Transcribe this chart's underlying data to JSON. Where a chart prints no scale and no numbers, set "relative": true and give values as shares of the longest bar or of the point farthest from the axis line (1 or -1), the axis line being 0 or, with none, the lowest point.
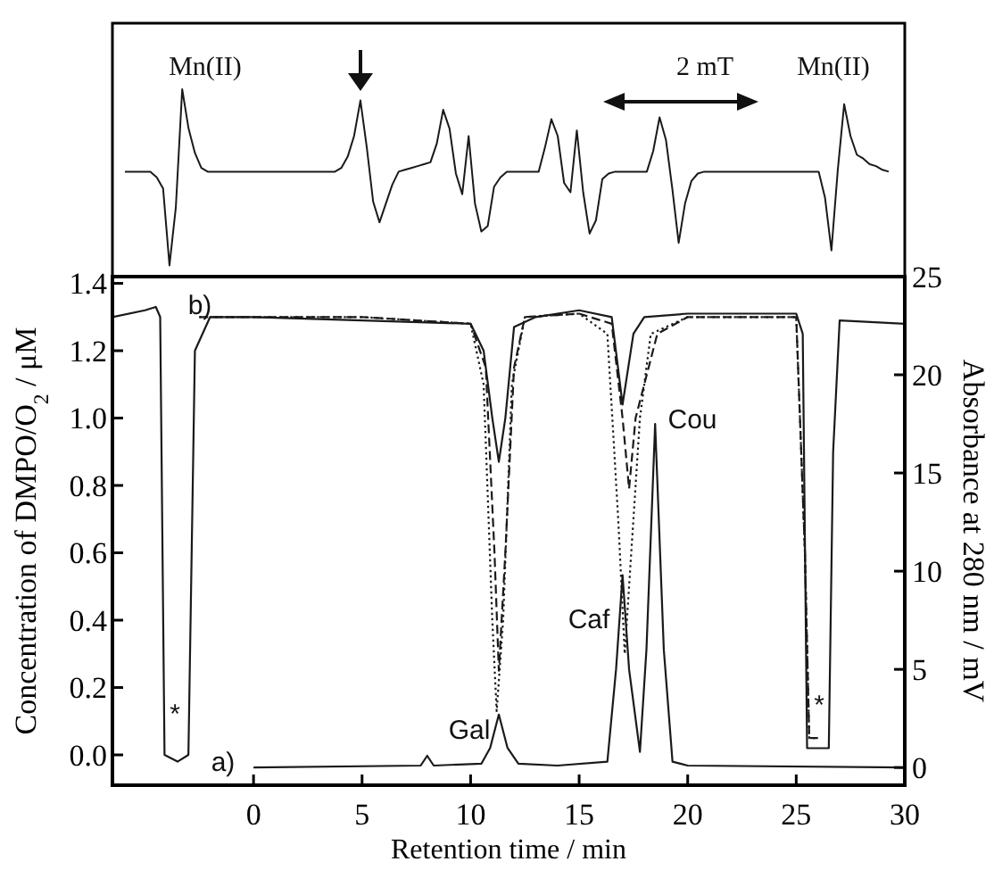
{
  "chart_data": [
    {
      "type": "line",
      "relative": true,
      "categories": [
        null,
        null,
        null,
        null,
        null,
        null,
        null,
        null,
        null,
        null,
        null,
        null,
        null,
        null,
        null,
        null,
        null,
        null,
        null,
        null,
        null,
        null,
        null,
        null,
        null,
        null,
        null,
        null,
        null,
        null,
        null,
        null,
        null,
        null,
        null,
        null,
        null,
        null,
        null,
        null,
        null,
        null,
        null,
        null,
        null,
        null,
        null,
        null,
        null,
        null,
        null,
        null,
        null,
        null,
        null,
        null,
        null,
        null,
        null,
        null,
        null,
        null,
        null,
        null,
        null,
        null,
        null,
        null,
        null,
        null,
        null,
        null,
        null,
        null,
        null,
        null,
        null,
        null,
        null,
        null,
        null,
        null,
        null,
        null,
        null,
        null,
        null,
        null,
        null,
        null,
        null,
        null,
        null,
        null,
        null,
        null,
        null,
        null,
        null,
        null,
        null,
        null,
        null,
        null,
        null,
        null,
        null,
        null,
        null,
        null,
        null,
        null,
        null,
        null,
        null,
        null,
        null,
        null,
        null,
        null,
        null
      ],
      "series": [
        {
          "color": "#1a1a1a",
          "values": [
            0.56,
            0.56,
            0.56,
            0.56,
            0.56,
            0.53,
            0.47,
            0.06,
            0.37,
            1,
            0.79,
            0.66,
            0.58,
            0.56,
            0.56,
            0.56,
            0.56,
            0.56,
            0.56,
            0.56,
            0.56,
            0.56,
            0.56,
            0.56,
            0.56,
            0.56,
            0.56,
            0.56,
            0.56,
            0.56,
            0.56,
            0.56,
            0.56,
            0.56,
            0.58,
            0.64,
            0.75,
            0.94,
            0.69,
            0.4,
            0.29,
            0.39,
            0.49,
            0.56,
            0.57,
            0.58,
            0.59,
            0.6,
            0.61,
            0.71,
            0.89,
            0.79,
            0.55,
            0.44,
            0.75,
            0.39,
            0.24,
            0.27,
            0.48,
            0.53,
            0.56,
            0.56,
            0.56,
            0.56,
            0.56,
            0.56,
            0.69,
            0.84,
            0.75,
            0.5,
            0.45,
            0.78,
            0.45,
            0.23,
            0.3,
            0.52,
            0.55,
            0.56,
            0.56,
            0.56,
            0.56,
            0.56,
            0.56,
            0.67,
            0.85,
            0.73,
            0.47,
            0.18,
            0.39,
            0.51,
            0.55,
            0.56,
            0.56,
            0.56,
            0.56,
            0.56,
            0.56,
            0.56,
            0.56,
            0.56,
            0.56,
            0.56,
            0.56,
            0.56,
            0.56,
            0.56,
            0.56,
            0.56,
            0.56,
            0.56,
            0.42,
            0.14,
            0.57,
            0.92,
            0.75,
            0.65,
            0.63,
            0.6,
            0.59,
            0.57,
            0.56
          ]
        }
      ],
      "annotations": [
        "Mn(II)",
        "2 mT",
        "Mn(II)"
      ]
    },
    {
      "type": "line",
      "xlabel": "Retention time / min",
      "ylabel": "Concentration of DMPO/O$_{2}$ / μM",
      "y2label": "Absorbance at 280 nm / mV",
      "xlim": [
        -6.5,
        30
      ],
      "xticks": [
        0,
        5,
        10,
        15,
        20,
        25,
        30
      ],
      "ylim": [
        -0.09,
        1.42
      ],
      "yticks": [
        {
          "value": 0,
          "label": "0.0"
        },
        {
          "value": 0.2,
          "label": "0.2"
        },
        {
          "value": 0.4,
          "label": "0.4"
        },
        {
          "value": 0.6,
          "label": "0.6"
        },
        {
          "value": 0.8,
          "label": "0.8"
        },
        {
          "value": 1,
          "label": "1.0"
        },
        {
          "value": 1.2,
          "label": "1.2"
        },
        {
          "value": 1.4,
          "label": "1.4"
        }
      ],
      "y2lim": [
        -0.9,
        25
      ],
      "y2ticks": [
        0,
        5,
        10,
        15,
        20,
        25
      ],
      "series": [
        {
          "color": "#1a1a1a",
          "line_style": "solid",
          "x": [
            -6.5,
            -5,
            -4.5,
            -4.3,
            -4.1,
            -3.5,
            -3,
            -2.9,
            -2.7,
            -2,
            0,
            5,
            10,
            10.6,
            11.0,
            11.3,
            11.6,
            12,
            13,
            15,
            16.5,
            17.0,
            17.5,
            18,
            20,
            25,
            25.3,
            25.5,
            26.5,
            26.7,
            27,
            30
          ],
          "values": [
            1.3,
            1.32,
            1.33,
            1.3,
            0.0,
            -0.02,
            0.0,
            0.4,
            1.2,
            1.3,
            1.3,
            1.29,
            1.28,
            1.2,
            1.0,
            0.87,
            1.0,
            1.27,
            1.3,
            1.32,
            1.3,
            1.04,
            1.25,
            1.3,
            1.31,
            1.31,
            1.25,
            0.02,
            0.02,
            0.9,
            1.29,
            1.28
          ]
        },
        {
          "color": "#1a1a1a",
          "line_style": "dashed",
          "x": [
            -2.5,
            5,
            10,
            10.7,
            11.1,
            11.3,
            11.6,
            12.0,
            12.5,
            15,
            16.5,
            17.0,
            17.3,
            17.6,
            18.2,
            18.6,
            20,
            25,
            25.4,
            25.6,
            26
          ],
          "values": [
            1.3,
            1.3,
            1.28,
            1.15,
            0.6,
            0.25,
            0.6,
            1.15,
            1.3,
            1.31,
            1.28,
            1.0,
            0.79,
            1.0,
            1.15,
            1.25,
            1.3,
            1.3,
            0.6,
            0.05,
            0.05
          ]
        },
        {
          "color": "#1a1a1a",
          "line_style": "dotted",
          "x": [
            -2.5,
            5,
            10,
            10.6,
            11.0,
            11.2,
            11.5,
            11.9,
            12.5,
            15,
            16.3,
            16.8,
            17.1,
            17.4,
            17.8,
            18.3,
            20,
            25,
            25.4,
            25.6,
            26
          ],
          "values": [
            1.3,
            1.3,
            1.28,
            1.1,
            0.4,
            0.13,
            0.4,
            1.1,
            1.3,
            1.31,
            1.25,
            0.7,
            0.3,
            0.6,
            1.0,
            1.25,
            1.3,
            1.3,
            0.6,
            0.05,
            0.05
          ]
        },
        {
          "color": "#1a1a1a",
          "line_style": "solid",
          "axis": "y2",
          "x": [
            0,
            7.7,
            8.0,
            8.3,
            10.5,
            10.9,
            11.3,
            11.7,
            12.2,
            14,
            16.3,
            16.7,
            17.0,
            17.3,
            17.8,
            18.1,
            18.5,
            18.9,
            19.3,
            20,
            30
          ],
          "values": [
            0,
            0.1,
            0.6,
            0.1,
            0.2,
            1.0,
            2.7,
            1.0,
            0.2,
            0.1,
            0.3,
            5.0,
            9.8,
            5.0,
            0.8,
            6.0,
            17.5,
            6.0,
            0.3,
            0.1,
            0
          ]
        }
      ],
      "annotations": [
        "b)",
        "a)",
        "Gal",
        "Caf",
        "Cou",
        "*",
        "*"
      ]
    }
  ]
}
